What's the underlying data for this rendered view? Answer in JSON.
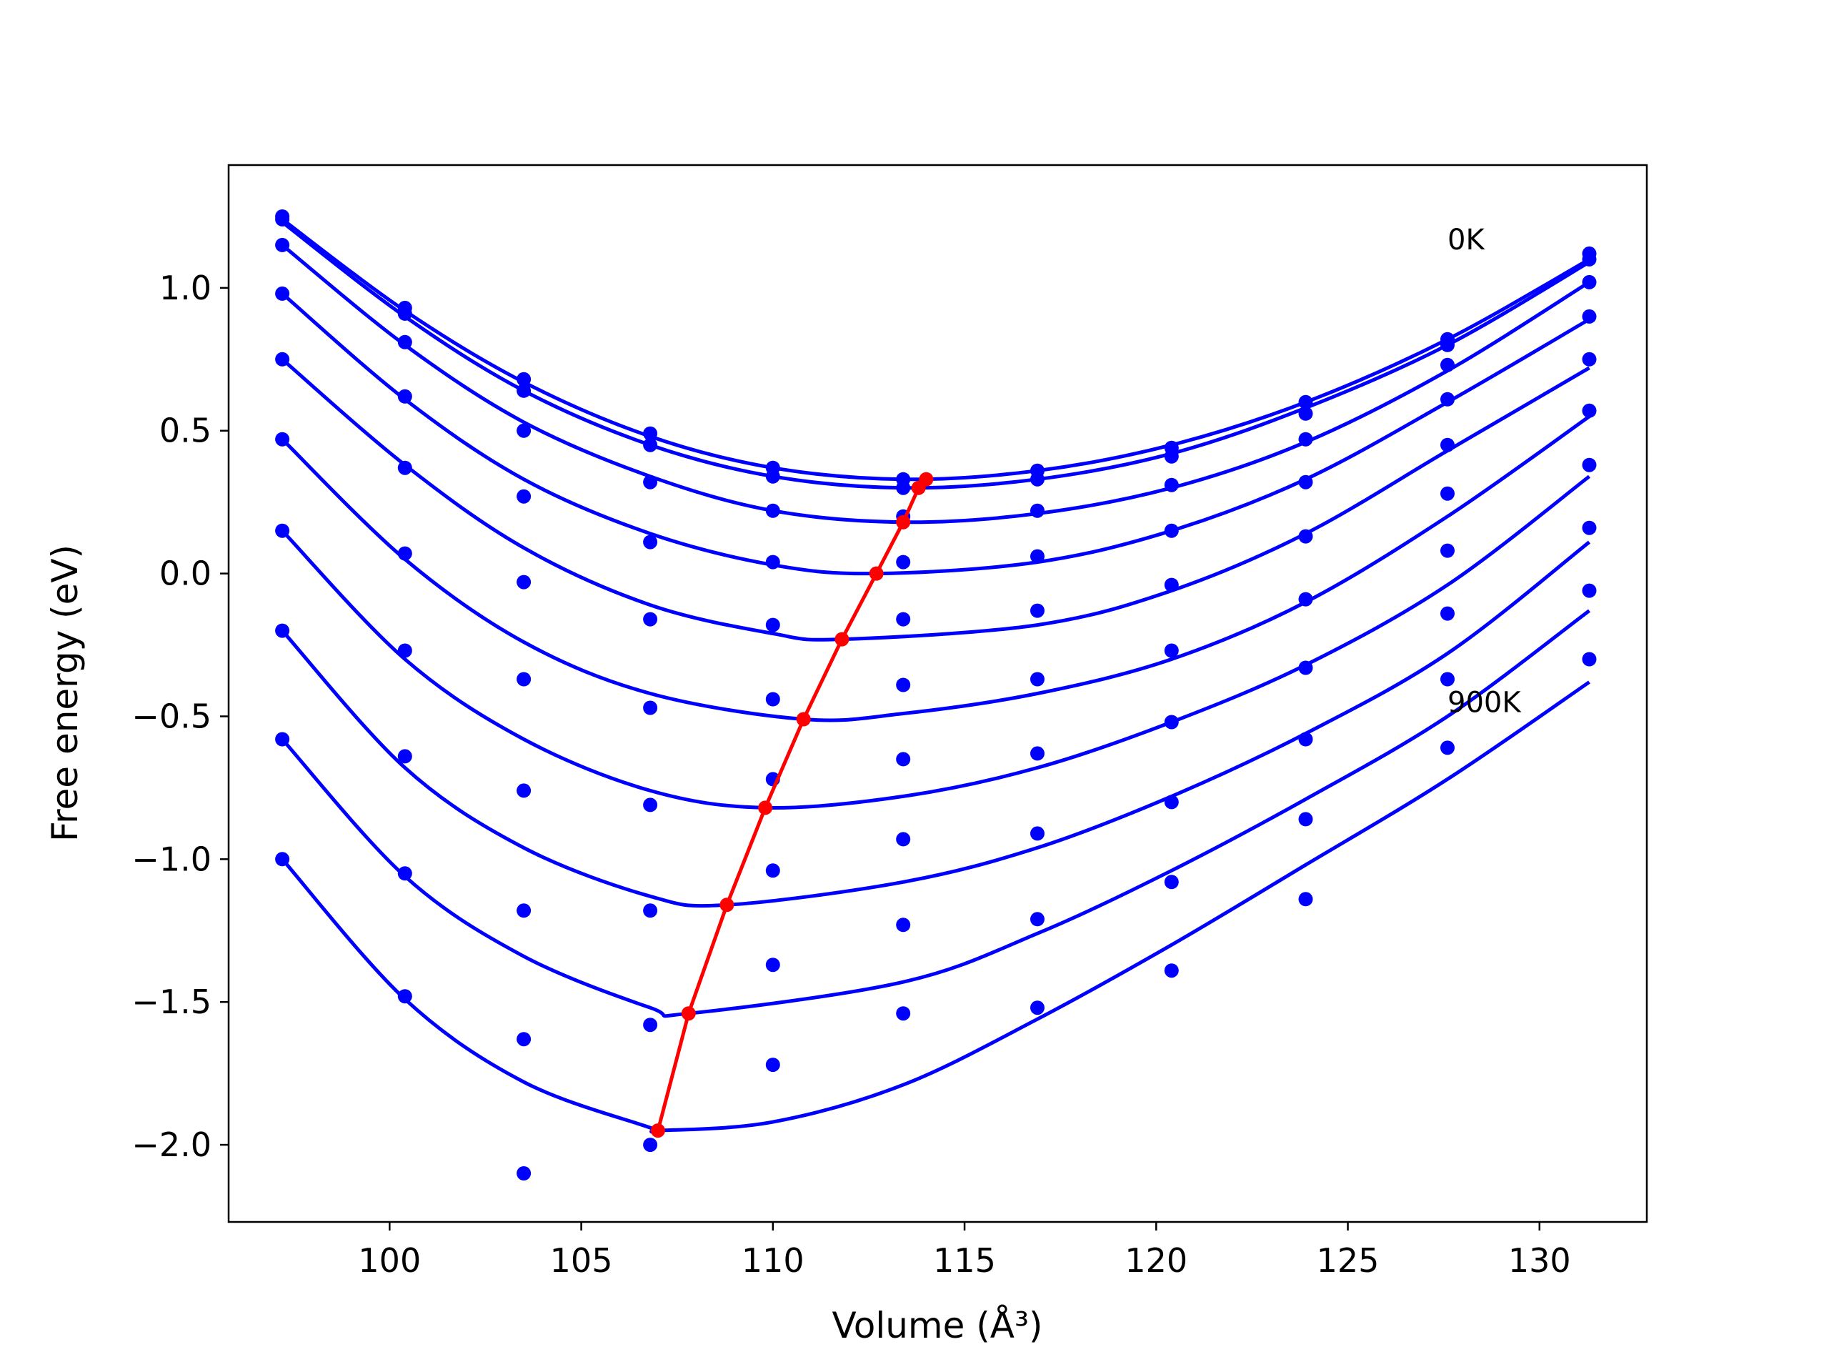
{
  "chart_data": {
    "type": "line",
    "title": "",
    "xlabel": "Volume (Å³)",
    "ylabel": "Free energy (eV)",
    "xlim": [
      95.8,
      132.8
    ],
    "ylim": [
      -2.27,
      1.43
    ],
    "x_ticks": [
      100,
      105,
      110,
      115,
      120,
      125,
      130
    ],
    "x_tick_labels": [
      "100",
      "105",
      "110",
      "115",
      "120",
      "125",
      "130"
    ],
    "y_ticks": [
      -2.0,
      -1.5,
      -1.0,
      -0.5,
      0.0,
      0.5,
      1.0
    ],
    "y_tick_labels": [
      "−2.0",
      "−1.5",
      "−1.0",
      "−0.5",
      "0.0",
      "0.5",
      "1.0"
    ],
    "grid": false,
    "annotations": [
      {
        "text": "0K",
        "x": 127.6,
        "y": 1.17
      },
      {
        "text": "900K",
        "x": 127.6,
        "y": -0.45
      }
    ],
    "points_x": [
      97.2,
      100.4,
      103.5,
      106.8,
      110.0,
      113.4,
      116.9,
      120.4,
      123.9,
      127.6,
      131.3
    ],
    "series": [
      {
        "points": [
          1.25,
          0.93,
          0.68,
          0.49,
          0.37,
          0.33,
          0.36,
          0.44,
          0.6,
          0.82,
          1.12
        ],
        "curve": [
          [
            97.2,
            1.24
          ],
          [
            100.4,
            0.92
          ],
          [
            103.5,
            0.67
          ],
          [
            106.8,
            0.48
          ],
          [
            110.0,
            0.37
          ],
          [
            113.4,
            0.33
          ],
          [
            116.9,
            0.36
          ],
          [
            120.4,
            0.45
          ],
          [
            123.9,
            0.6
          ],
          [
            127.6,
            0.82
          ],
          [
            131.3,
            1.1
          ]
        ]
      },
      {
        "points": [
          1.24,
          0.91,
          0.64,
          0.45,
          0.34,
          0.3,
          0.33,
          0.41,
          0.56,
          0.8,
          1.1
        ],
        "curve": [
          [
            97.2,
            1.23
          ],
          [
            100.4,
            0.9
          ],
          [
            103.5,
            0.64
          ],
          [
            106.8,
            0.45
          ],
          [
            110.0,
            0.34
          ],
          [
            113.4,
            0.3
          ],
          [
            116.9,
            0.33
          ],
          [
            120.4,
            0.42
          ],
          [
            123.9,
            0.58
          ],
          [
            127.6,
            0.8
          ],
          [
            131.3,
            1.09
          ]
        ]
      },
      {
        "points": [
          1.15,
          0.81,
          0.5,
          0.32,
          0.22,
          0.2,
          0.22,
          0.31,
          0.47,
          0.73,
          1.02
        ],
        "curve": [
          [
            97.2,
            1.15
          ],
          [
            100.4,
            0.8
          ],
          [
            103.5,
            0.53
          ],
          [
            106.8,
            0.34
          ],
          [
            110.0,
            0.22
          ],
          [
            113.4,
            0.18
          ],
          [
            116.9,
            0.21
          ],
          [
            120.4,
            0.3
          ],
          [
            123.9,
            0.46
          ],
          [
            127.6,
            0.71
          ],
          [
            131.3,
            1.02
          ]
        ]
      },
      {
        "points": [
          0.98,
          0.62,
          0.27,
          0.11,
          0.04,
          0.04,
          0.06,
          0.15,
          0.32,
          0.61,
          0.9
        ],
        "curve": [
          [
            97.2,
            0.98
          ],
          [
            100.4,
            0.61
          ],
          [
            103.5,
            0.33
          ],
          [
            106.8,
            0.14
          ],
          [
            110.0,
            0.03
          ],
          [
            112.7,
            0.0
          ],
          [
            116.9,
            0.04
          ],
          [
            120.4,
            0.15
          ],
          [
            123.9,
            0.33
          ],
          [
            127.6,
            0.6
          ],
          [
            131.3,
            0.89
          ]
        ]
      },
      {
        "points": [
          0.75,
          0.37,
          -0.03,
          -0.16,
          -0.18,
          -0.16,
          -0.13,
          -0.04,
          0.13,
          0.45,
          0.75
        ],
        "curve": [
          [
            97.2,
            0.75
          ],
          [
            100.4,
            0.38
          ],
          [
            103.5,
            0.09
          ],
          [
            106.8,
            -0.11
          ],
          [
            110.0,
            -0.21
          ],
          [
            111.8,
            -0.23
          ],
          [
            116.9,
            -0.18
          ],
          [
            120.4,
            -0.06
          ],
          [
            123.9,
            0.14
          ],
          [
            127.6,
            0.43
          ],
          [
            131.3,
            0.72
          ]
        ]
      },
      {
        "points": [
          0.47,
          0.07,
          -0.37,
          -0.47,
          -0.44,
          -0.39,
          -0.37,
          -0.27,
          -0.09,
          0.28,
          0.57
        ],
        "curve": [
          [
            97.2,
            0.47
          ],
          [
            100.4,
            0.05
          ],
          [
            103.5,
            -0.24
          ],
          [
            106.8,
            -0.42
          ],
          [
            110.8,
            -0.51
          ],
          [
            113.4,
            -0.49
          ],
          [
            116.9,
            -0.42
          ],
          [
            120.4,
            -0.3
          ],
          [
            123.9,
            -0.1
          ],
          [
            127.6,
            0.2
          ],
          [
            131.3,
            0.55
          ]
        ]
      },
      {
        "points": [
          0.15,
          -0.27,
          -0.76,
          -0.81,
          -0.72,
          -0.65,
          -0.63,
          -0.52,
          -0.33,
          0.08,
          0.38
        ],
        "curve": [
          [
            97.2,
            0.15
          ],
          [
            100.4,
            -0.3
          ],
          [
            103.5,
            -0.58
          ],
          [
            106.8,
            -0.76
          ],
          [
            109.8,
            -0.82
          ],
          [
            113.4,
            -0.78
          ],
          [
            116.9,
            -0.68
          ],
          [
            120.4,
            -0.52
          ],
          [
            123.9,
            -0.32
          ],
          [
            127.6,
            -0.04
          ],
          [
            131.3,
            0.34
          ]
        ]
      },
      {
        "points": [
          -0.2,
          -0.64,
          -1.18,
          -1.18,
          -1.04,
          -0.93,
          -0.91,
          -0.8,
          -0.58,
          -0.14,
          0.16
        ],
        "curve": [
          [
            97.2,
            -0.2
          ],
          [
            100.4,
            -0.68
          ],
          [
            103.5,
            -0.96
          ],
          [
            106.8,
            -1.13
          ],
          [
            108.8,
            -1.16
          ],
          [
            113.4,
            -1.08
          ],
          [
            116.9,
            -0.96
          ],
          [
            120.4,
            -0.78
          ],
          [
            123.9,
            -0.56
          ],
          [
            127.6,
            -0.28
          ],
          [
            131.3,
            0.11
          ]
        ]
      },
      {
        "points": [
          -0.58,
          -1.05,
          -1.63,
          -1.58,
          -1.37,
          -1.23,
          -1.21,
          -1.08,
          -0.86,
          -0.37,
          -0.06
        ],
        "curve": [
          [
            97.2,
            -0.58
          ],
          [
            100.4,
            -1.06
          ],
          [
            103.5,
            -1.34
          ],
          [
            106.8,
            -1.52
          ],
          [
            107.8,
            -1.54
          ],
          [
            113.4,
            -1.43
          ],
          [
            116.9,
            -1.26
          ],
          [
            120.4,
            -1.04
          ],
          [
            123.9,
            -0.79
          ],
          [
            127.6,
            -0.5
          ],
          [
            131.3,
            -0.13
          ]
        ]
      },
      {
        "points": [
          -1.0,
          -1.48,
          -2.1,
          -2.0,
          -1.72,
          -1.54,
          -1.52,
          -1.39,
          -1.14,
          -0.61,
          -0.3
        ],
        "curve": [
          [
            97.2,
            -1.0
          ],
          [
            100.4,
            -1.49
          ],
          [
            103.5,
            -1.78
          ],
          [
            106.8,
            -1.94
          ],
          [
            107.0,
            -1.95
          ],
          [
            110.0,
            -1.92
          ],
          [
            113.4,
            -1.79
          ],
          [
            116.9,
            -1.56
          ],
          [
            120.4,
            -1.3
          ],
          [
            123.9,
            -1.02
          ],
          [
            127.6,
            -0.72
          ],
          [
            131.3,
            -0.38
          ]
        ]
      }
    ],
    "minima_line": {
      "x": [
        114.0,
        113.8,
        113.4,
        112.7,
        111.8,
        110.8,
        109.8,
        108.8,
        107.8,
        107.0
      ],
      "y": [
        0.33,
        0.3,
        0.18,
        0.0,
        -0.23,
        -0.51,
        -0.82,
        -1.16,
        -1.54,
        -1.95
      ]
    },
    "colors": {
      "curves": "#0000ff",
      "minima": "#ff0000",
      "axes": "#000000"
    }
  }
}
